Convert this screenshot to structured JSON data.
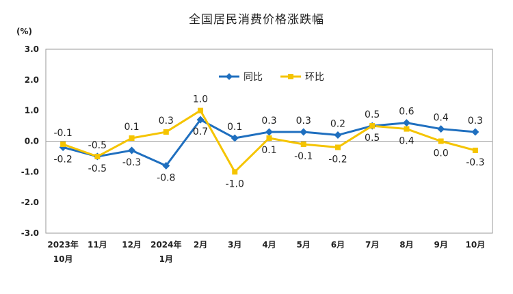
{
  "chart_data": {
    "type": "line",
    "title": "全国居民消费价格涨跌幅",
    "ylabel": "(%)",
    "xlabel": "",
    "ylim": [
      -3.0,
      3.0
    ],
    "yticks": [
      "3.0",
      "2.0",
      "1.0",
      "0.0",
      "-1.0",
      "-2.0",
      "-3.0"
    ],
    "categories": [
      {
        "line1": "2023年",
        "line2": "10月"
      },
      {
        "line1": "11月",
        "line2": ""
      },
      {
        "line1": "12月",
        "line2": ""
      },
      {
        "line1": "2024年",
        "line2": "1月"
      },
      {
        "line1": "2月",
        "line2": ""
      },
      {
        "line1": "3月",
        "line2": ""
      },
      {
        "line1": "4月",
        "line2": ""
      },
      {
        "line1": "5月",
        "line2": ""
      },
      {
        "line1": "6月",
        "line2": ""
      },
      {
        "line1": "7月",
        "line2": ""
      },
      {
        "line1": "8月",
        "line2": ""
      },
      {
        "line1": "9月",
        "line2": ""
      },
      {
        "line1": "10月",
        "line2": ""
      }
    ],
    "series": [
      {
        "name": "同比",
        "color": "#1f6fbf",
        "marker": "diamond",
        "values": [
          -0.2,
          -0.5,
          -0.3,
          -0.8,
          0.7,
          0.1,
          0.3,
          0.3,
          0.2,
          0.5,
          0.6,
          0.4,
          0.3
        ],
        "labels": [
          "-0.2",
          "-0.5",
          "-0.3",
          "-0.8",
          "0.7",
          "0.1",
          "0.3",
          "0.3",
          "0.2",
          "0.5",
          "0.6",
          "0.4",
          "0.3"
        ]
      },
      {
        "name": "环比",
        "color": "#f5c400",
        "marker": "square",
        "values": [
          -0.1,
          -0.5,
          0.1,
          0.3,
          1.0,
          -1.0,
          0.1,
          -0.1,
          -0.2,
          0.5,
          0.4,
          0.0,
          -0.3
        ],
        "labels": [
          "-0.1",
          "-0.5",
          "0.1",
          "0.3",
          "1.0",
          "-1.0",
          "0.1",
          "-0.1",
          "-0.2",
          "0.5",
          "0.4",
          "0.0",
          "-0.3"
        ]
      }
    ],
    "grid": false,
    "legend": "top-center"
  }
}
